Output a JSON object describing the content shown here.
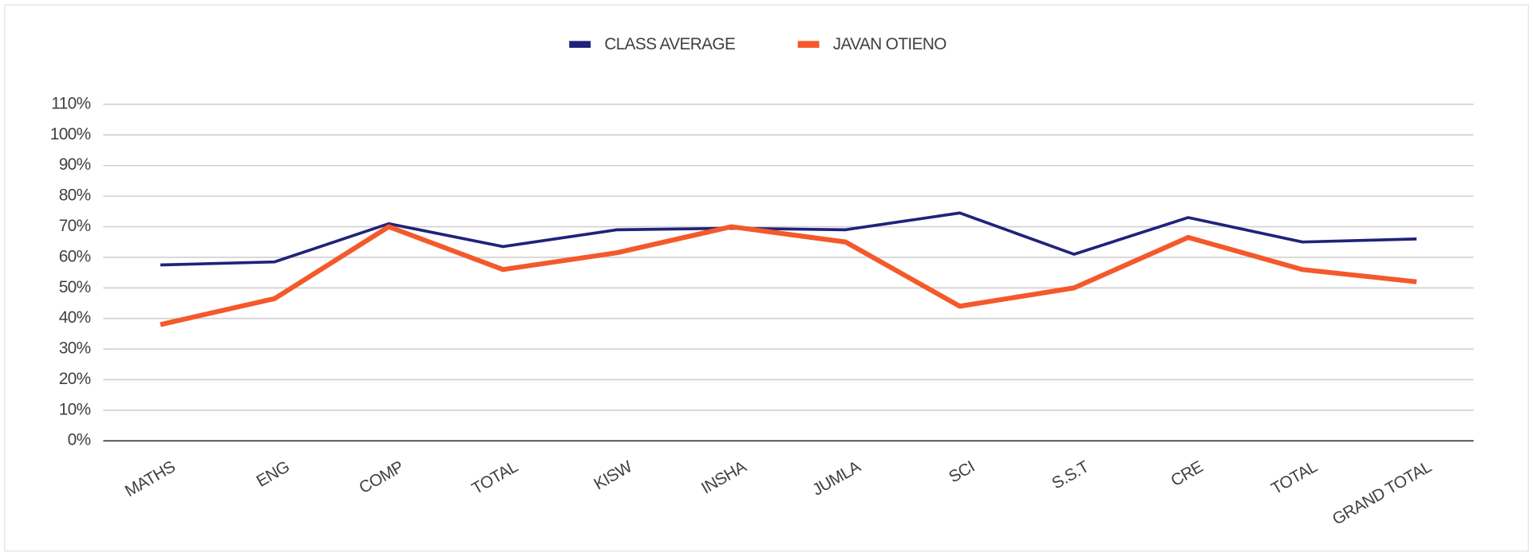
{
  "chart_data": {
    "type": "line",
    "categories": [
      "MATHS",
      "ENG",
      "COMP",
      "TOTAL",
      "KISW",
      "INSHA",
      "JUMLA",
      "SCI",
      "S.S.T",
      "CRE",
      "TOTAL",
      "GRAND TOTAL"
    ],
    "series": [
      {
        "name": "CLASS AVERAGE",
        "color": "#1f237a",
        "values": [
          57.5,
          58.5,
          71,
          63.5,
          69,
          69.5,
          69,
          74.5,
          61,
          73,
          65,
          66
        ]
      },
      {
        "name": "JAVAN  OTIENO",
        "color": "#f4592b",
        "values": [
          38,
          46.5,
          70,
          56,
          61.5,
          70,
          65,
          44,
          50,
          66.5,
          56,
          52
        ]
      }
    ],
    "ylim": [
      0,
      110
    ],
    "yticks": [
      {
        "value": 0,
        "label": "0%"
      },
      {
        "value": 10,
        "label": "10%"
      },
      {
        "value": 20,
        "label": "20%"
      },
      {
        "value": 30,
        "label": "30%"
      },
      {
        "value": 40,
        "label": "40%"
      },
      {
        "value": 50,
        "label": "50%"
      },
      {
        "value": 60,
        "label": "60%"
      },
      {
        "value": 70,
        "label": "70%"
      },
      {
        "value": 80,
        "label": "80%"
      },
      {
        "value": 90,
        "label": "90%"
      },
      {
        "value": 100,
        "label": "100%"
      },
      {
        "value": 110,
        "label": "110%"
      }
    ],
    "grid": true,
    "legend": "top"
  }
}
